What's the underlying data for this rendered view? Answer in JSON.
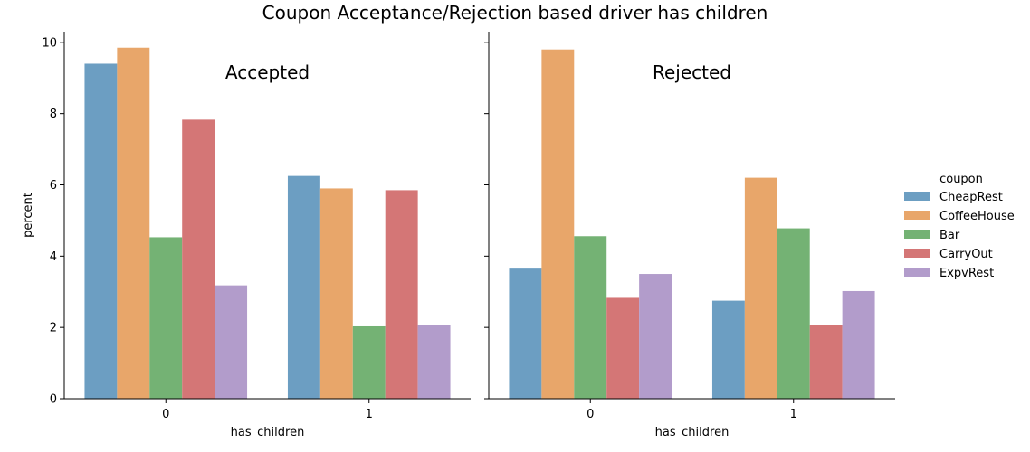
{
  "chart_data": {
    "type": "bar",
    "title": "Coupon Acceptance/Rejection based driver has children",
    "xlabel": "has_children",
    "ylabel": "percent",
    "ylim": [
      0,
      10.3
    ],
    "yticks": [
      "0",
      "2",
      "4",
      "6",
      "8",
      "10"
    ],
    "categories": [
      "0",
      "1"
    ],
    "legend": {
      "title": "coupon",
      "placement": "right",
      "items": [
        "CheapRest",
        "CoffeeHouse",
        "Bar",
        "CarryOut",
        "ExpvRest"
      ]
    },
    "colors": [
      "#6c9ec2",
      "#e8a66a",
      "#74b274",
      "#d47676",
      "#b29ccb"
    ],
    "panels": [
      {
        "title": "Accepted",
        "series": [
          {
            "name": "CheapRest",
            "values": [
              9.4,
              6.25
            ]
          },
          {
            "name": "CoffeeHouse",
            "values": [
              9.85,
              5.9
            ]
          },
          {
            "name": "Bar",
            "values": [
              4.53,
              2.03
            ]
          },
          {
            "name": "CarryOut",
            "values": [
              7.83,
              5.85
            ]
          },
          {
            "name": "ExpvRest",
            "values": [
              3.18,
              2.08
            ]
          }
        ]
      },
      {
        "title": "Rejected",
        "series": [
          {
            "name": "CheapRest",
            "values": [
              3.65,
              2.75
            ]
          },
          {
            "name": "CoffeeHouse",
            "values": [
              9.8,
              6.2
            ]
          },
          {
            "name": "Bar",
            "values": [
              4.56,
              4.78
            ]
          },
          {
            "name": "CarryOut",
            "values": [
              2.83,
              2.08
            ]
          },
          {
            "name": "ExpvRest",
            "values": [
              3.5,
              3.02
            ]
          }
        ]
      }
    ]
  }
}
